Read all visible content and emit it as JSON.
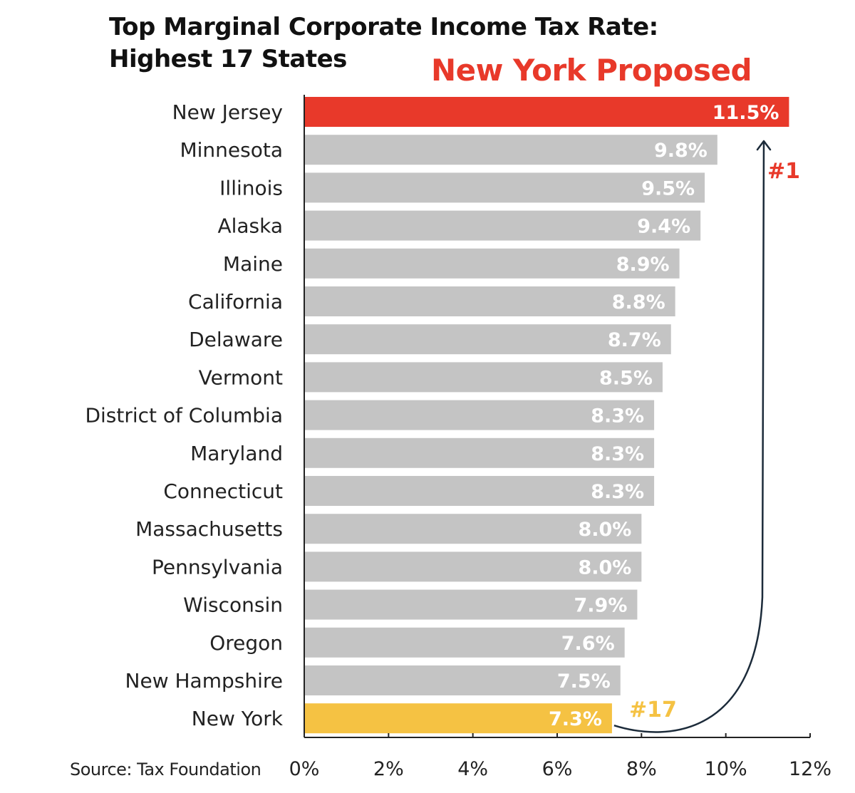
{
  "chart_data": {
    "type": "bar",
    "orientation": "horizontal",
    "title": [
      "Top Marginal Corporate Income Tax Rate:",
      "Highest 17 States"
    ],
    "callout": "New York Proposed",
    "source": "Source: Tax Foundation",
    "categories": [
      "New Jersey",
      "Minnesota",
      "Illinois",
      "Alaska",
      "Maine",
      "California",
      "Delaware",
      "Vermont",
      "District of Columbia",
      "Maryland",
      "Connecticut",
      "Massachusetts",
      "Pennsylvania",
      "Wisconsin",
      "Oregon",
      "New Hampshire",
      "New York"
    ],
    "values": [
      11.5,
      9.8,
      9.5,
      9.4,
      8.9,
      8.8,
      8.7,
      8.5,
      8.3,
      8.3,
      8.3,
      8.0,
      8.0,
      7.9,
      7.6,
      7.5,
      7.3
    ],
    "value_labels": [
      "11.5%",
      "9.8%",
      "9.5%",
      "9.4%",
      "8.9%",
      "8.8%",
      "8.7%",
      "8.5%",
      "8.3%",
      "8.3%",
      "8.3%",
      "8.0%",
      "8.0%",
      "7.9%",
      "7.6%",
      "7.5%",
      "7.3%"
    ],
    "xlim": [
      0,
      12
    ],
    "xticks": [
      0,
      2,
      4,
      6,
      8,
      10,
      12
    ],
    "xtick_labels": [
      "0%",
      "2%",
      "4%",
      "6%",
      "8%",
      "10%",
      "12%"
    ],
    "grid": false,
    "colors": {
      "default_bar": "#c4c4c4",
      "highlight_bar": "#e8392a",
      "new_york_bar": "#f5c243",
      "arrow": "#1c2b3a",
      "axis": "#222222"
    },
    "highlight_categories": {
      "New Jersey": "highlight_bar",
      "New York": "new_york_bar"
    },
    "annotations": [
      {
        "text": "#1",
        "color": "#e8392a",
        "near_category": "Minnesota"
      },
      {
        "text": "#17",
        "color": "#f5c243",
        "near_category": "New York"
      }
    ],
    "arrow": {
      "from_category": "New York",
      "to_category": "New Jersey"
    }
  }
}
